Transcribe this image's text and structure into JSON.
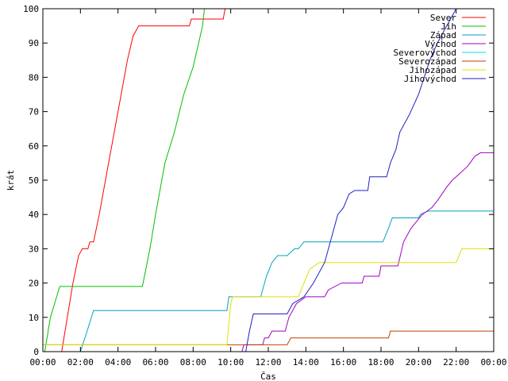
{
  "chart_data": {
    "type": "line",
    "title": "",
    "xlabel": "Čas",
    "ylabel": "krát",
    "xlim": [
      0,
      24
    ],
    "ylim": [
      0,
      100
    ],
    "x_ticks": [
      {
        "v": 0,
        "label": "00:00"
      },
      {
        "v": 2,
        "label": "02:00"
      },
      {
        "v": 4,
        "label": "04:00"
      },
      {
        "v": 6,
        "label": "06:00"
      },
      {
        "v": 8,
        "label": "08:00"
      },
      {
        "v": 10,
        "label": "10:00"
      },
      {
        "v": 12,
        "label": "12:00"
      },
      {
        "v": 14,
        "label": "14:00"
      },
      {
        "v": 16,
        "label": "16:00"
      },
      {
        "v": 18,
        "label": "18:00"
      },
      {
        "v": 20,
        "label": "20:00"
      },
      {
        "v": 22,
        "label": "22:00"
      },
      {
        "v": 24,
        "label": "00:00"
      }
    ],
    "y_ticks": [
      {
        "v": 0,
        "label": "0"
      },
      {
        "v": 10,
        "label": "10"
      },
      {
        "v": 20,
        "label": "20"
      },
      {
        "v": 30,
        "label": "30"
      },
      {
        "v": 40,
        "label": "40"
      },
      {
        "v": 50,
        "label": "50"
      },
      {
        "v": 60,
        "label": "60"
      },
      {
        "v": 70,
        "label": "70"
      },
      {
        "v": 80,
        "label": "80"
      },
      {
        "v": 90,
        "label": "90"
      },
      {
        "v": 100,
        "label": "100"
      }
    ],
    "grid": false,
    "legend_position": "top-right",
    "series": [
      {
        "name": "Sever",
        "color": "#ff0000",
        "points": [
          [
            1.0,
            0
          ],
          [
            1.6,
            20
          ],
          [
            1.9,
            28
          ],
          [
            2.1,
            30
          ],
          [
            2.4,
            30
          ],
          [
            2.5,
            32
          ],
          [
            2.7,
            32
          ],
          [
            3.0,
            40
          ],
          [
            3.5,
            55
          ],
          [
            4.0,
            70
          ],
          [
            4.5,
            85
          ],
          [
            4.8,
            92
          ],
          [
            5.1,
            95
          ],
          [
            7.8,
            95
          ],
          [
            7.9,
            97
          ],
          [
            9.6,
            97
          ],
          [
            9.7,
            100
          ]
        ]
      },
      {
        "name": "Jih",
        "color": "#00c000",
        "points": [
          [
            0.1,
            0
          ],
          [
            0.4,
            10
          ],
          [
            0.9,
            19
          ],
          [
            5.3,
            19
          ],
          [
            5.7,
            30
          ],
          [
            6.0,
            40
          ],
          [
            6.5,
            55
          ],
          [
            7.0,
            64
          ],
          [
            7.5,
            75
          ],
          [
            8.0,
            83
          ],
          [
            8.5,
            95
          ],
          [
            8.6,
            100
          ]
        ]
      },
      {
        "name": "Západ",
        "color": "#00a0c0",
        "points": [
          [
            2.0,
            0
          ],
          [
            2.3,
            5
          ],
          [
            2.7,
            12
          ],
          [
            9.8,
            12
          ],
          [
            9.9,
            16
          ],
          [
            11.1,
            16
          ],
          [
            11.2,
            16
          ],
          [
            11.6,
            16
          ],
          [
            11.9,
            22
          ],
          [
            12.2,
            26
          ],
          [
            12.5,
            28
          ],
          [
            13.0,
            28
          ],
          [
            13.4,
            30
          ],
          [
            13.6,
            30
          ],
          [
            13.9,
            32
          ],
          [
            18.1,
            32
          ],
          [
            18.4,
            36
          ],
          [
            18.6,
            39
          ],
          [
            20.0,
            39
          ],
          [
            20.1,
            40
          ],
          [
            20.5,
            41
          ],
          [
            24,
            41
          ]
        ]
      },
      {
        "name": "Východ",
        "color": "#a000c0",
        "points": [
          [
            10.6,
            0
          ],
          [
            10.7,
            2
          ],
          [
            11.7,
            2
          ],
          [
            11.8,
            4
          ],
          [
            12.0,
            4
          ],
          [
            12.2,
            6
          ],
          [
            12.9,
            6
          ],
          [
            13.1,
            10
          ],
          [
            13.5,
            14
          ],
          [
            14.0,
            16
          ],
          [
            15.0,
            16
          ],
          [
            15.2,
            18
          ],
          [
            15.9,
            20
          ],
          [
            17.0,
            20
          ],
          [
            17.1,
            22
          ],
          [
            17.9,
            22
          ],
          [
            18.0,
            25
          ],
          [
            18.9,
            25
          ],
          [
            19.2,
            32
          ],
          [
            19.6,
            36
          ],
          [
            19.9,
            38
          ],
          [
            20.2,
            40
          ],
          [
            20.7,
            42
          ],
          [
            21.0,
            44
          ],
          [
            21.5,
            48
          ],
          [
            21.8,
            50
          ],
          [
            22.2,
            52
          ],
          [
            22.6,
            54
          ],
          [
            23.0,
            57
          ],
          [
            23.3,
            58
          ],
          [
            24,
            58
          ]
        ]
      },
      {
        "name": "Severovýchod",
        "color": "#00e0e0",
        "points": [
          [
            0,
            0
          ]
        ]
      },
      {
        "name": "Severozápad",
        "color": "#c04000",
        "points": [
          [
            0.0,
            2
          ],
          [
            10.0,
            2
          ],
          [
            10.1,
            2
          ],
          [
            12.0,
            2
          ],
          [
            13.0,
            2
          ],
          [
            13.2,
            4
          ],
          [
            18.4,
            4
          ],
          [
            18.5,
            6
          ],
          [
            24,
            6
          ]
        ]
      },
      {
        "name": "Jihozápad",
        "color": "#e0e000",
        "points": [
          [
            0.0,
            2
          ],
          [
            9.8,
            2
          ],
          [
            10.0,
            14
          ],
          [
            10.1,
            16
          ],
          [
            13.6,
            16
          ],
          [
            13.9,
            20
          ],
          [
            14.2,
            24
          ],
          [
            14.7,
            26
          ],
          [
            22.0,
            26
          ],
          [
            22.3,
            30
          ],
          [
            24,
            30
          ]
        ]
      },
      {
        "name": "Jihovýchod",
        "color": "#2020c0",
        "points": [
          [
            10.8,
            0
          ],
          [
            11.0,
            6
          ],
          [
            11.2,
            11
          ],
          [
            12.5,
            11
          ],
          [
            13.0,
            11
          ],
          [
            13.3,
            14
          ],
          [
            13.9,
            16
          ],
          [
            14.4,
            20
          ],
          [
            15.0,
            26
          ],
          [
            15.4,
            34
          ],
          [
            15.7,
            40
          ],
          [
            16.0,
            42
          ],
          [
            16.3,
            46
          ],
          [
            16.6,
            47
          ],
          [
            17.3,
            47
          ],
          [
            17.4,
            51
          ],
          [
            18.3,
            51
          ],
          [
            18.5,
            55
          ],
          [
            18.8,
            59
          ],
          [
            19.0,
            64
          ],
          [
            19.5,
            69
          ],
          [
            20.0,
            75
          ],
          [
            20.6,
            85
          ],
          [
            21.0,
            90
          ],
          [
            21.5,
            95
          ],
          [
            22.0,
            100
          ]
        ]
      }
    ]
  }
}
